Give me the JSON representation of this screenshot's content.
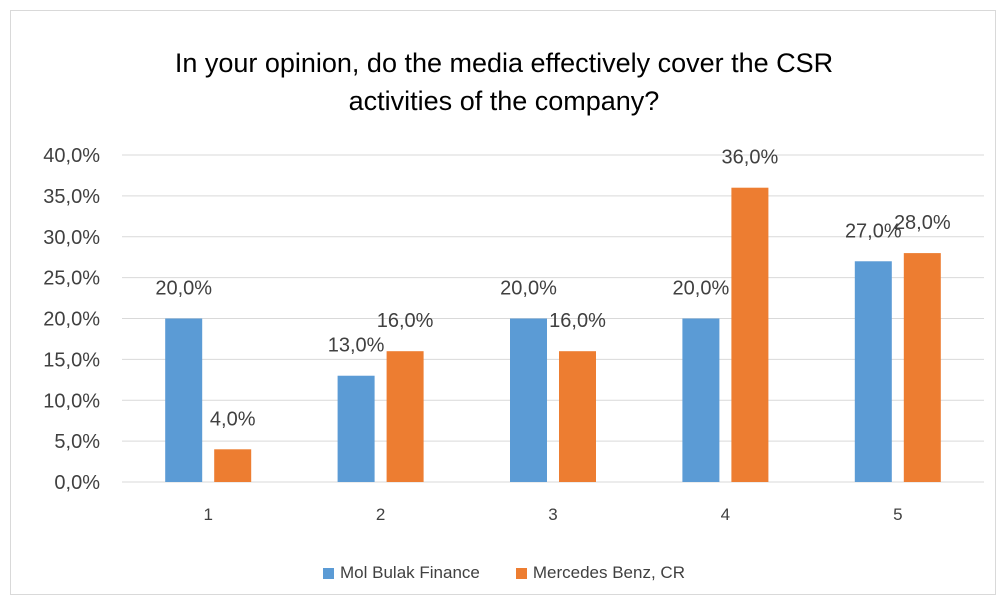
{
  "chart_data": {
    "type": "bar",
    "title_lines": [
      "In your opinion, do the media effectively cover the CSR",
      "activities of the company?"
    ],
    "categories": [
      "1",
      "2",
      "3",
      "4",
      "5"
    ],
    "series": [
      {
        "name": "Mol Bulak Finance",
        "color": "#5b9bd5",
        "values": [
          20.0,
          13.0,
          20.0,
          20.0,
          27.0
        ],
        "labels": [
          "20,0%",
          "13,0%",
          "20,0%",
          "20,0%",
          "27,0%"
        ]
      },
      {
        "name": "Mercedes Benz, CR",
        "color": "#ed7d31",
        "values": [
          4.0,
          16.0,
          16.0,
          36.0,
          28.0
        ],
        "labels": [
          "4,0%",
          "16,0%",
          "16,0%",
          "36,0%",
          "28,0%"
        ]
      }
    ],
    "y_ticks": [
      "0,0%",
      "5,0%",
      "10,0%",
      "15,0%",
      "20,0%",
      "25,0%",
      "30,0%",
      "35,0%",
      "40,0%"
    ],
    "ylim": [
      0,
      40
    ],
    "grid": true,
    "legend_position": "bottom",
    "gridline_color": "#d9d9d9"
  }
}
